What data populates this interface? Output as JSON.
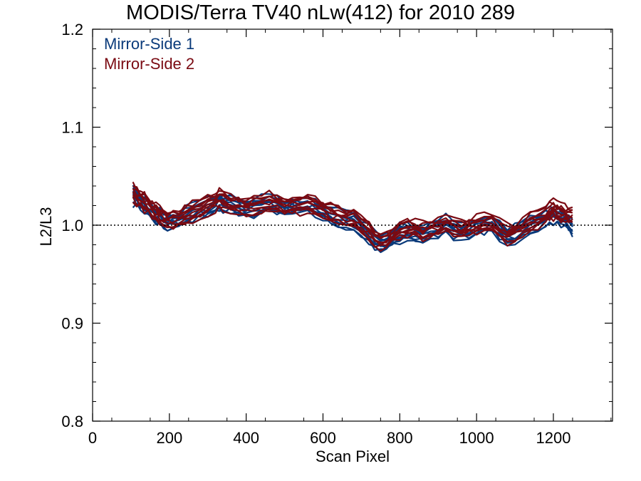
{
  "chart_data": {
    "type": "line",
    "title": "MODIS/Terra TV40 nLw(412) for 2010 289",
    "xlabel": "Scan Pixel",
    "ylabel": "L2/L3",
    "xlim": [
      0,
      1354
    ],
    "ylim": [
      0.8,
      1.2
    ],
    "x_ticks": [
      0,
      200,
      400,
      600,
      800,
      1000,
      1200
    ],
    "y_ticks": [
      0.8,
      0.9,
      1.0,
      1.1,
      1.2
    ],
    "x_tick_labels": [
      "0",
      "200",
      "400",
      "600",
      "800",
      "1000",
      "1200"
    ],
    "y_tick_labels": [
      "0.8",
      "0.9",
      "1.0",
      "1.1",
      "1.2"
    ],
    "reference_line": 1.0,
    "grid": false,
    "legend_position": "top-left",
    "x": [
      105,
      115,
      125,
      135,
      145,
      155,
      165,
      175,
      185,
      195,
      210,
      225,
      240,
      260,
      280,
      300,
      320,
      330,
      340,
      360,
      380,
      400,
      420,
      440,
      460,
      480,
      500,
      520,
      540,
      560,
      580,
      600,
      620,
      640,
      660,
      680,
      700,
      720,
      735,
      750,
      765,
      780,
      800,
      820,
      840,
      860,
      880,
      900,
      920,
      940,
      960,
      980,
      1000,
      1020,
      1040,
      1060,
      1080,
      1100,
      1120,
      1140,
      1160,
      1180,
      1190,
      1200,
      1210,
      1220,
      1230,
      1240,
      1250
    ],
    "series": [
      {
        "name": "Mirror-Side 1",
        "color": "#0a3a7a",
        "base": [
          1.03,
          1.027,
          1.025,
          1.022,
          1.018,
          1.014,
          1.01,
          1.008,
          1.004,
          1.002,
          1.004,
          1.006,
          1.009,
          1.012,
          1.015,
          1.018,
          1.022,
          1.026,
          1.022,
          1.02,
          1.018,
          1.016,
          1.018,
          1.021,
          1.022,
          1.02,
          1.018,
          1.019,
          1.018,
          1.02,
          1.017,
          1.014,
          1.01,
          1.008,
          1.006,
          1.005,
          0.998,
          0.99,
          0.983,
          0.98,
          0.982,
          0.987,
          0.992,
          0.994,
          0.992,
          0.99,
          0.995,
          0.997,
          1.0,
          0.996,
          0.994,
          0.995,
          0.998,
          1.0,
          1.002,
          0.994,
          0.988,
          0.99,
          0.995,
          1.0,
          1.003,
          1.007,
          1.009,
          1.01,
          1.008,
          1.006,
          1.005,
          1.003,
          0.998
        ]
      },
      {
        "name": "Mirror-Side 2",
        "color": "#7a0a12",
        "base": [
          1.032,
          1.03,
          1.027,
          1.024,
          1.02,
          1.016,
          1.013,
          1.01,
          1.007,
          1.005,
          1.006,
          1.008,
          1.011,
          1.014,
          1.017,
          1.02,
          1.024,
          1.028,
          1.025,
          1.022,
          1.02,
          1.018,
          1.02,
          1.022,
          1.024,
          1.022,
          1.02,
          1.021,
          1.02,
          1.022,
          1.019,
          1.016,
          1.012,
          1.01,
          1.008,
          1.007,
          1.0,
          0.993,
          0.987,
          0.984,
          0.986,
          0.99,
          0.995,
          0.997,
          0.995,
          0.993,
          0.997,
          0.999,
          1.002,
          0.999,
          0.997,
          0.998,
          1.0,
          1.003,
          1.004,
          0.997,
          0.991,
          0.993,
          0.998,
          1.003,
          1.007,
          1.011,
          1.014,
          1.016,
          1.014,
          1.012,
          1.011,
          1.009,
          1.008
        ]
      }
    ]
  }
}
